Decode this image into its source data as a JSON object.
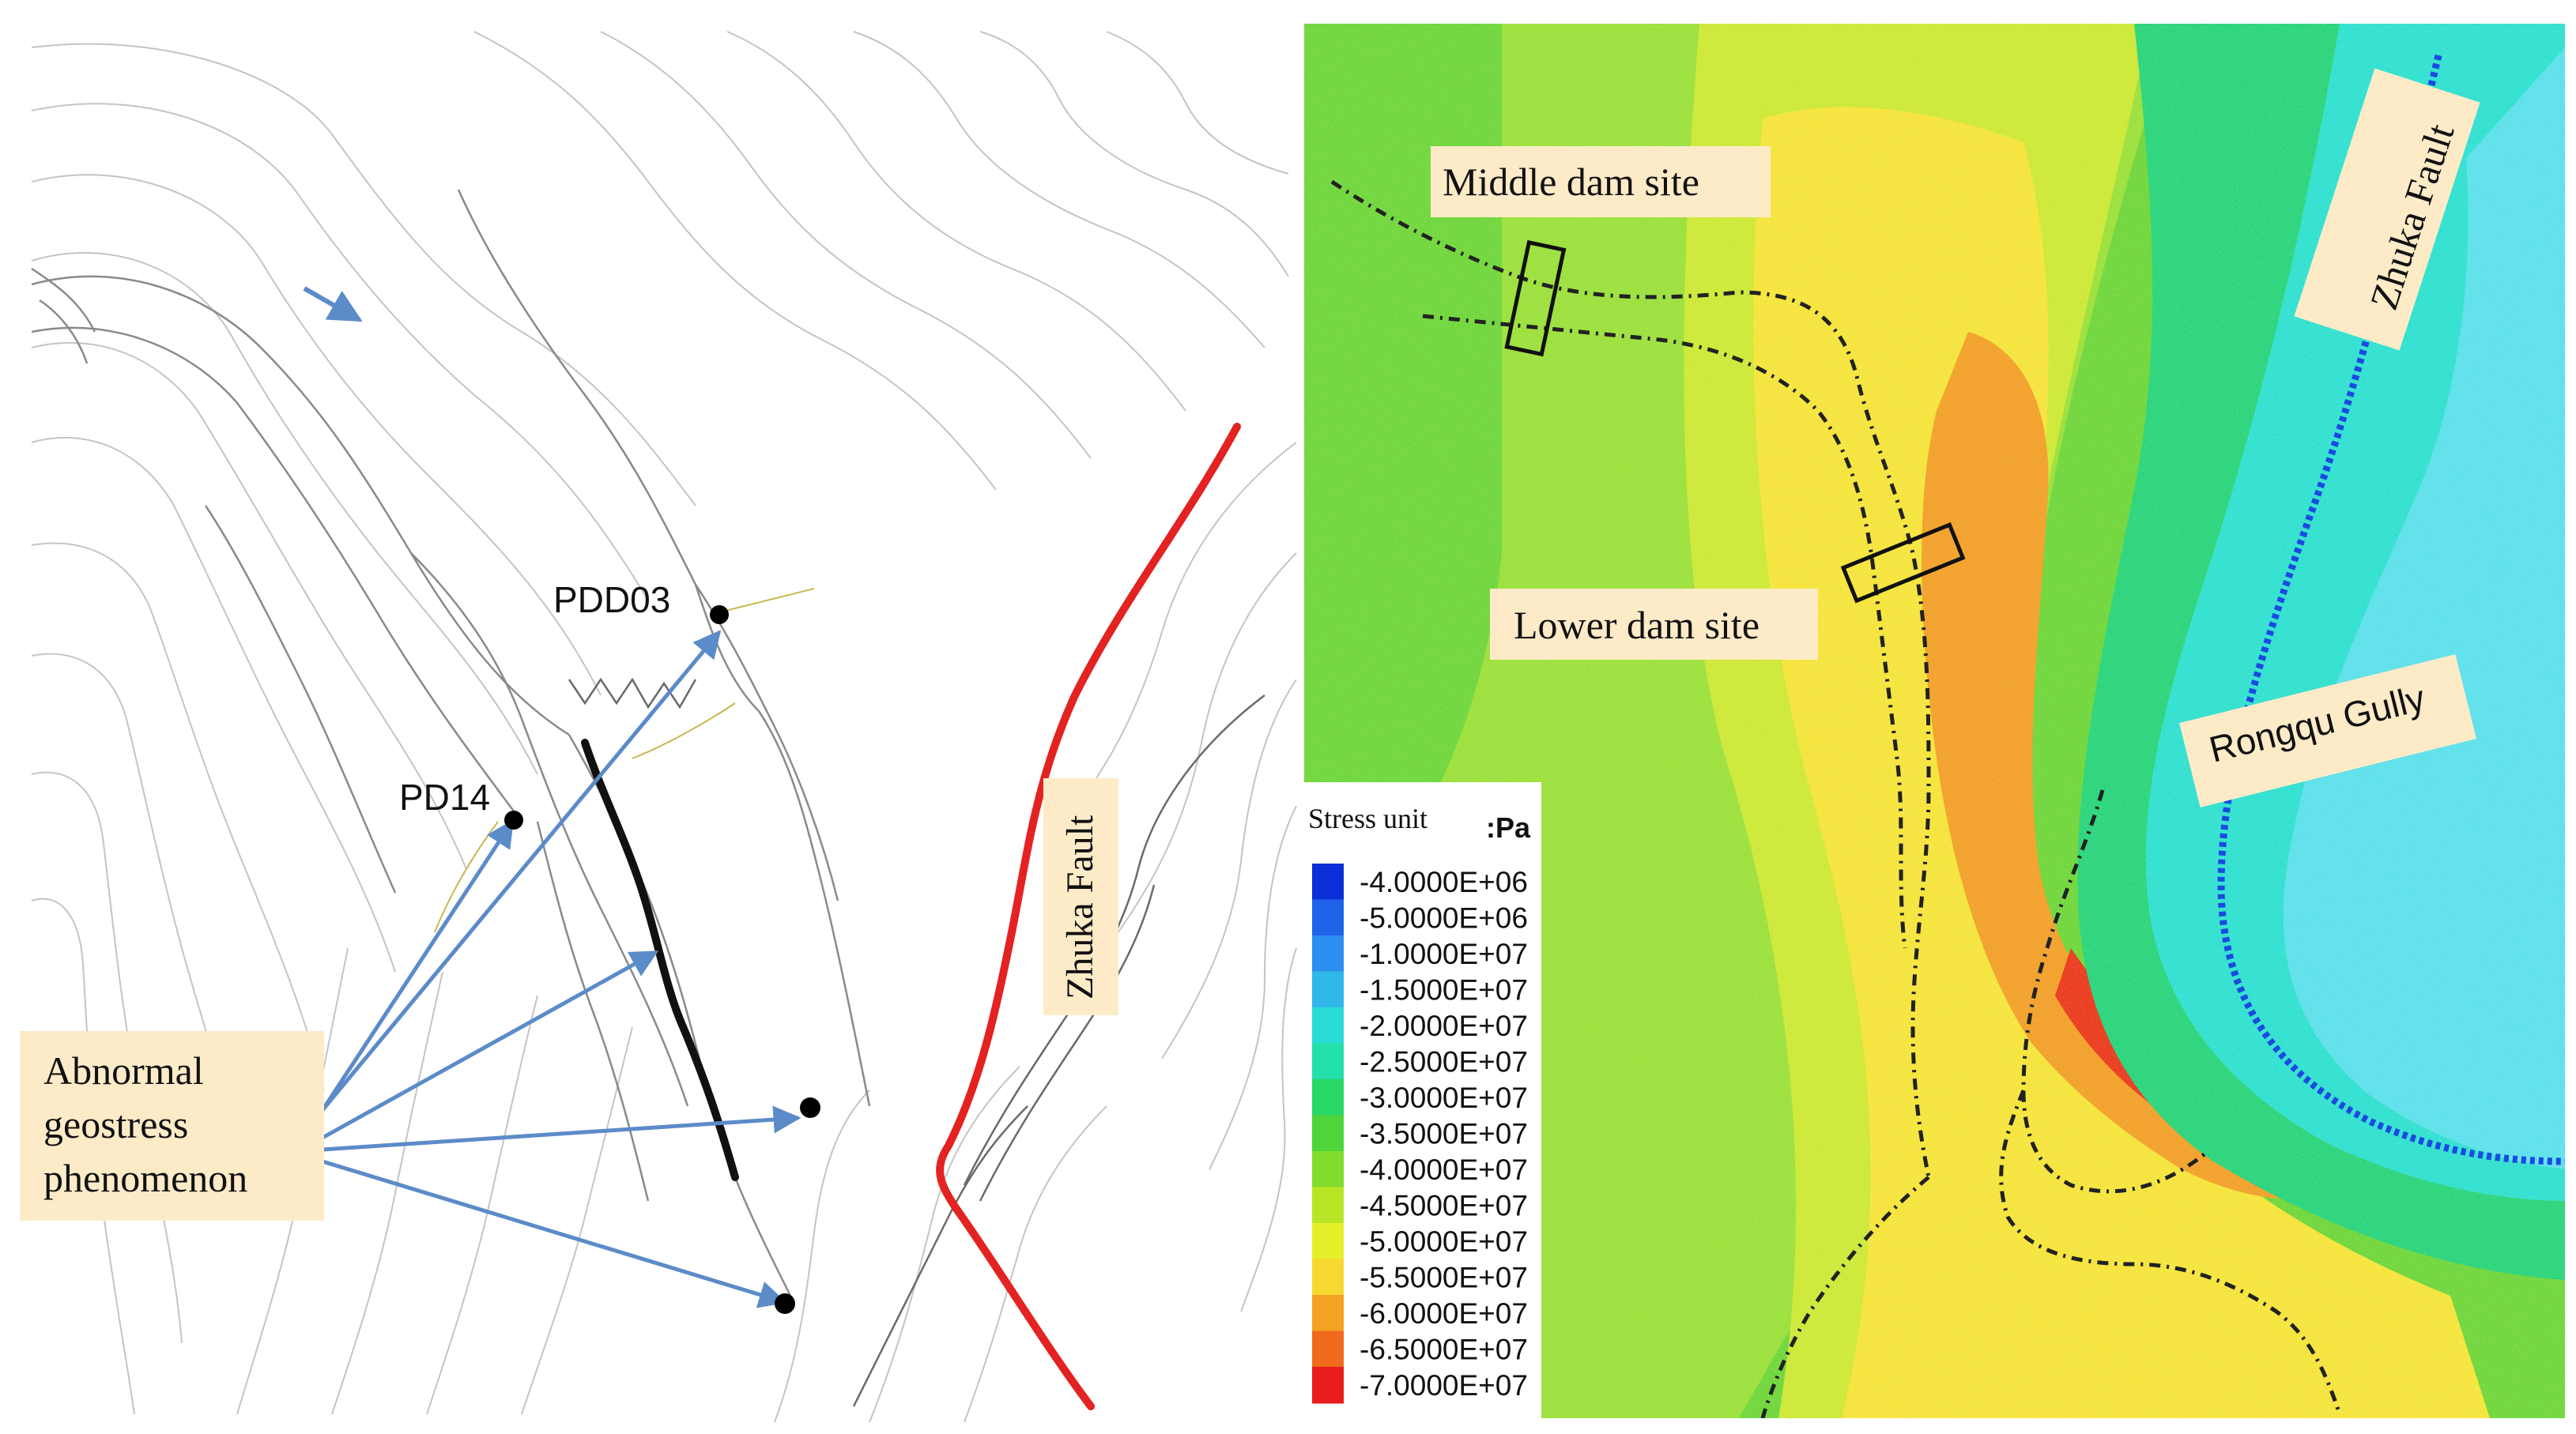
{
  "left_map": {
    "labels": {
      "pdd03": "PDD03",
      "pd14": "PD14",
      "fault": "Zhuka Fault",
      "abnormal": [
        "Abnormal",
        "geostress",
        "phenomenon"
      ]
    },
    "colors": {
      "fault_line": "#e32222",
      "arrow": "#5b8bc8",
      "label_box": "#fdebc8",
      "contour": "#b8b8b8"
    }
  },
  "right_map": {
    "labels": {
      "middle_dam": "Middle dam site",
      "lower_dam": "Lower dam site",
      "fault": "Zhuka Fault",
      "gully": "Rongqu Gully"
    }
  },
  "legend": {
    "title": "Stress unit",
    "unit": ":Pa",
    "entries": [
      {
        "value": "-4.0000E+06",
        "color": "#0a2fd8"
      },
      {
        "value": "-5.0000E+06",
        "color": "#1f63e8"
      },
      {
        "value": "-1.0000E+07",
        "color": "#2b8ff0"
      },
      {
        "value": "-1.5000E+07",
        "color": "#30b8ea"
      },
      {
        "value": "-2.0000E+07",
        "color": "#2bdbd8"
      },
      {
        "value": "-2.5000E+07",
        "color": "#22e0a8"
      },
      {
        "value": "-3.0000E+07",
        "color": "#2ad868"
      },
      {
        "value": "-3.5000E+07",
        "color": "#4fd43a"
      },
      {
        "value": "-4.0000E+07",
        "color": "#82dc2c"
      },
      {
        "value": "-4.5000E+07",
        "color": "#b8e626"
      },
      {
        "value": "-5.0000E+07",
        "color": "#e6ee2a"
      },
      {
        "value": "-5.5000E+07",
        "color": "#f8d830"
      },
      {
        "value": "-6.0000E+07",
        "color": "#f4a224"
      },
      {
        "value": "-6.5000E+07",
        "color": "#f06a1c"
      },
      {
        "value": "-7.0000E+07",
        "color": "#e81c1c"
      }
    ]
  }
}
